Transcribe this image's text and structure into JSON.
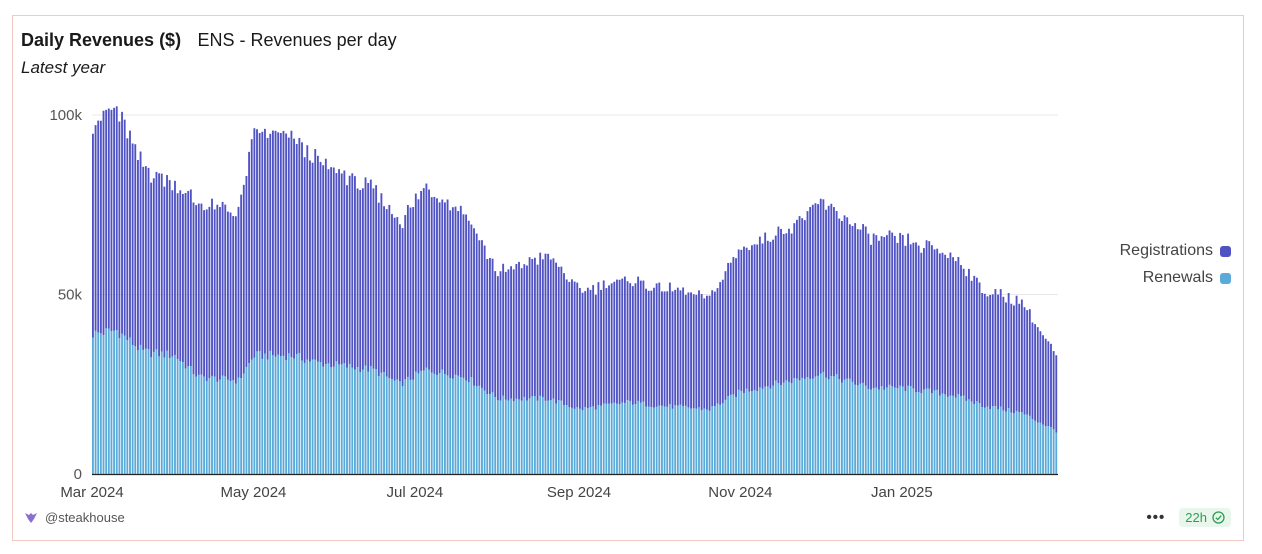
{
  "header": {
    "title": "Daily Revenues ($)",
    "subtitle": "ENS - Revenues per day",
    "period": "Latest year"
  },
  "footer": {
    "author": "@steakhouse",
    "more_label": "•••",
    "freshness": "22h"
  },
  "colors": {
    "registrations": "#5052c3",
    "renewals": "#5aabd9",
    "grid": "#e8e8e8",
    "axis": "#222222"
  },
  "chart_data": {
    "type": "bar",
    "stacked": true,
    "title": "Daily Revenues ($)",
    "subtitle": "ENS - Revenues per day",
    "x_range": [
      "2024-03-01",
      "2025-02-28"
    ],
    "x_ticks": [
      "Mar 2024",
      "May 2024",
      "Jul 2024",
      "Sep 2024",
      "Nov 2024",
      "Jan 2025"
    ],
    "y_ticks": [
      "0",
      "50k",
      "100k"
    ],
    "y_tick_values": [
      0,
      50000,
      100000
    ],
    "ylim": [
      0,
      100000
    ],
    "legend_position": "right",
    "grid": true,
    "series": [
      {
        "name": "Renewals",
        "color": "#5aabd9",
        "keyframes": [
          [
            "2024-03-01",
            39000
          ],
          [
            "2024-03-10",
            40000
          ],
          [
            "2024-03-20",
            34000
          ],
          [
            "2024-04-01",
            33000
          ],
          [
            "2024-04-10",
            27000
          ],
          [
            "2024-04-25",
            26000
          ],
          [
            "2024-05-01",
            33000
          ],
          [
            "2024-05-15",
            33000
          ],
          [
            "2024-05-25",
            31000
          ],
          [
            "2024-06-15",
            29000
          ],
          [
            "2024-06-25",
            25000
          ],
          [
            "2024-07-05",
            29000
          ],
          [
            "2024-07-20",
            27000
          ],
          [
            "2024-08-01",
            21000
          ],
          [
            "2024-08-20",
            21000
          ],
          [
            "2024-09-01",
            18000
          ],
          [
            "2024-09-20",
            20000
          ],
          [
            "2024-10-01",
            19000
          ],
          [
            "2024-10-20",
            18000
          ],
          [
            "2024-11-01",
            23000
          ],
          [
            "2024-11-20",
            26000
          ],
          [
            "2024-12-01",
            28000
          ],
          [
            "2024-12-20",
            24000
          ],
          [
            "2025-01-01",
            24000
          ],
          [
            "2025-01-20",
            22000
          ],
          [
            "2025-02-01",
            19000
          ],
          [
            "2025-02-15",
            17000
          ],
          [
            "2025-02-28",
            12000
          ]
        ]
      },
      {
        "name": "Registrations",
        "color": "#5052c3",
        "keyframes": [
          [
            "2024-03-01",
            59000
          ],
          [
            "2024-03-10",
            62000
          ],
          [
            "2024-03-20",
            51000
          ],
          [
            "2024-04-01",
            48000
          ],
          [
            "2024-04-10",
            48000
          ],
          [
            "2024-04-25",
            47000
          ],
          [
            "2024-05-01",
            62000
          ],
          [
            "2024-05-15",
            61000
          ],
          [
            "2024-05-25",
            56000
          ],
          [
            "2024-06-15",
            50000
          ],
          [
            "2024-06-25",
            45000
          ],
          [
            "2024-07-05",
            51000
          ],
          [
            "2024-07-20",
            46000
          ],
          [
            "2024-08-01",
            35000
          ],
          [
            "2024-08-20",
            40000
          ],
          [
            "2024-09-01",
            33000
          ],
          [
            "2024-09-20",
            34000
          ],
          [
            "2024-10-01",
            33000
          ],
          [
            "2024-10-20",
            31000
          ],
          [
            "2024-11-01",
            40000
          ],
          [
            "2024-11-20",
            43000
          ],
          [
            "2024-12-01",
            48000
          ],
          [
            "2024-12-20",
            42000
          ],
          [
            "2025-01-01",
            41000
          ],
          [
            "2025-01-20",
            39000
          ],
          [
            "2025-02-01",
            32000
          ],
          [
            "2025-02-15",
            31000
          ],
          [
            "2025-02-28",
            21000
          ]
        ]
      }
    ]
  }
}
